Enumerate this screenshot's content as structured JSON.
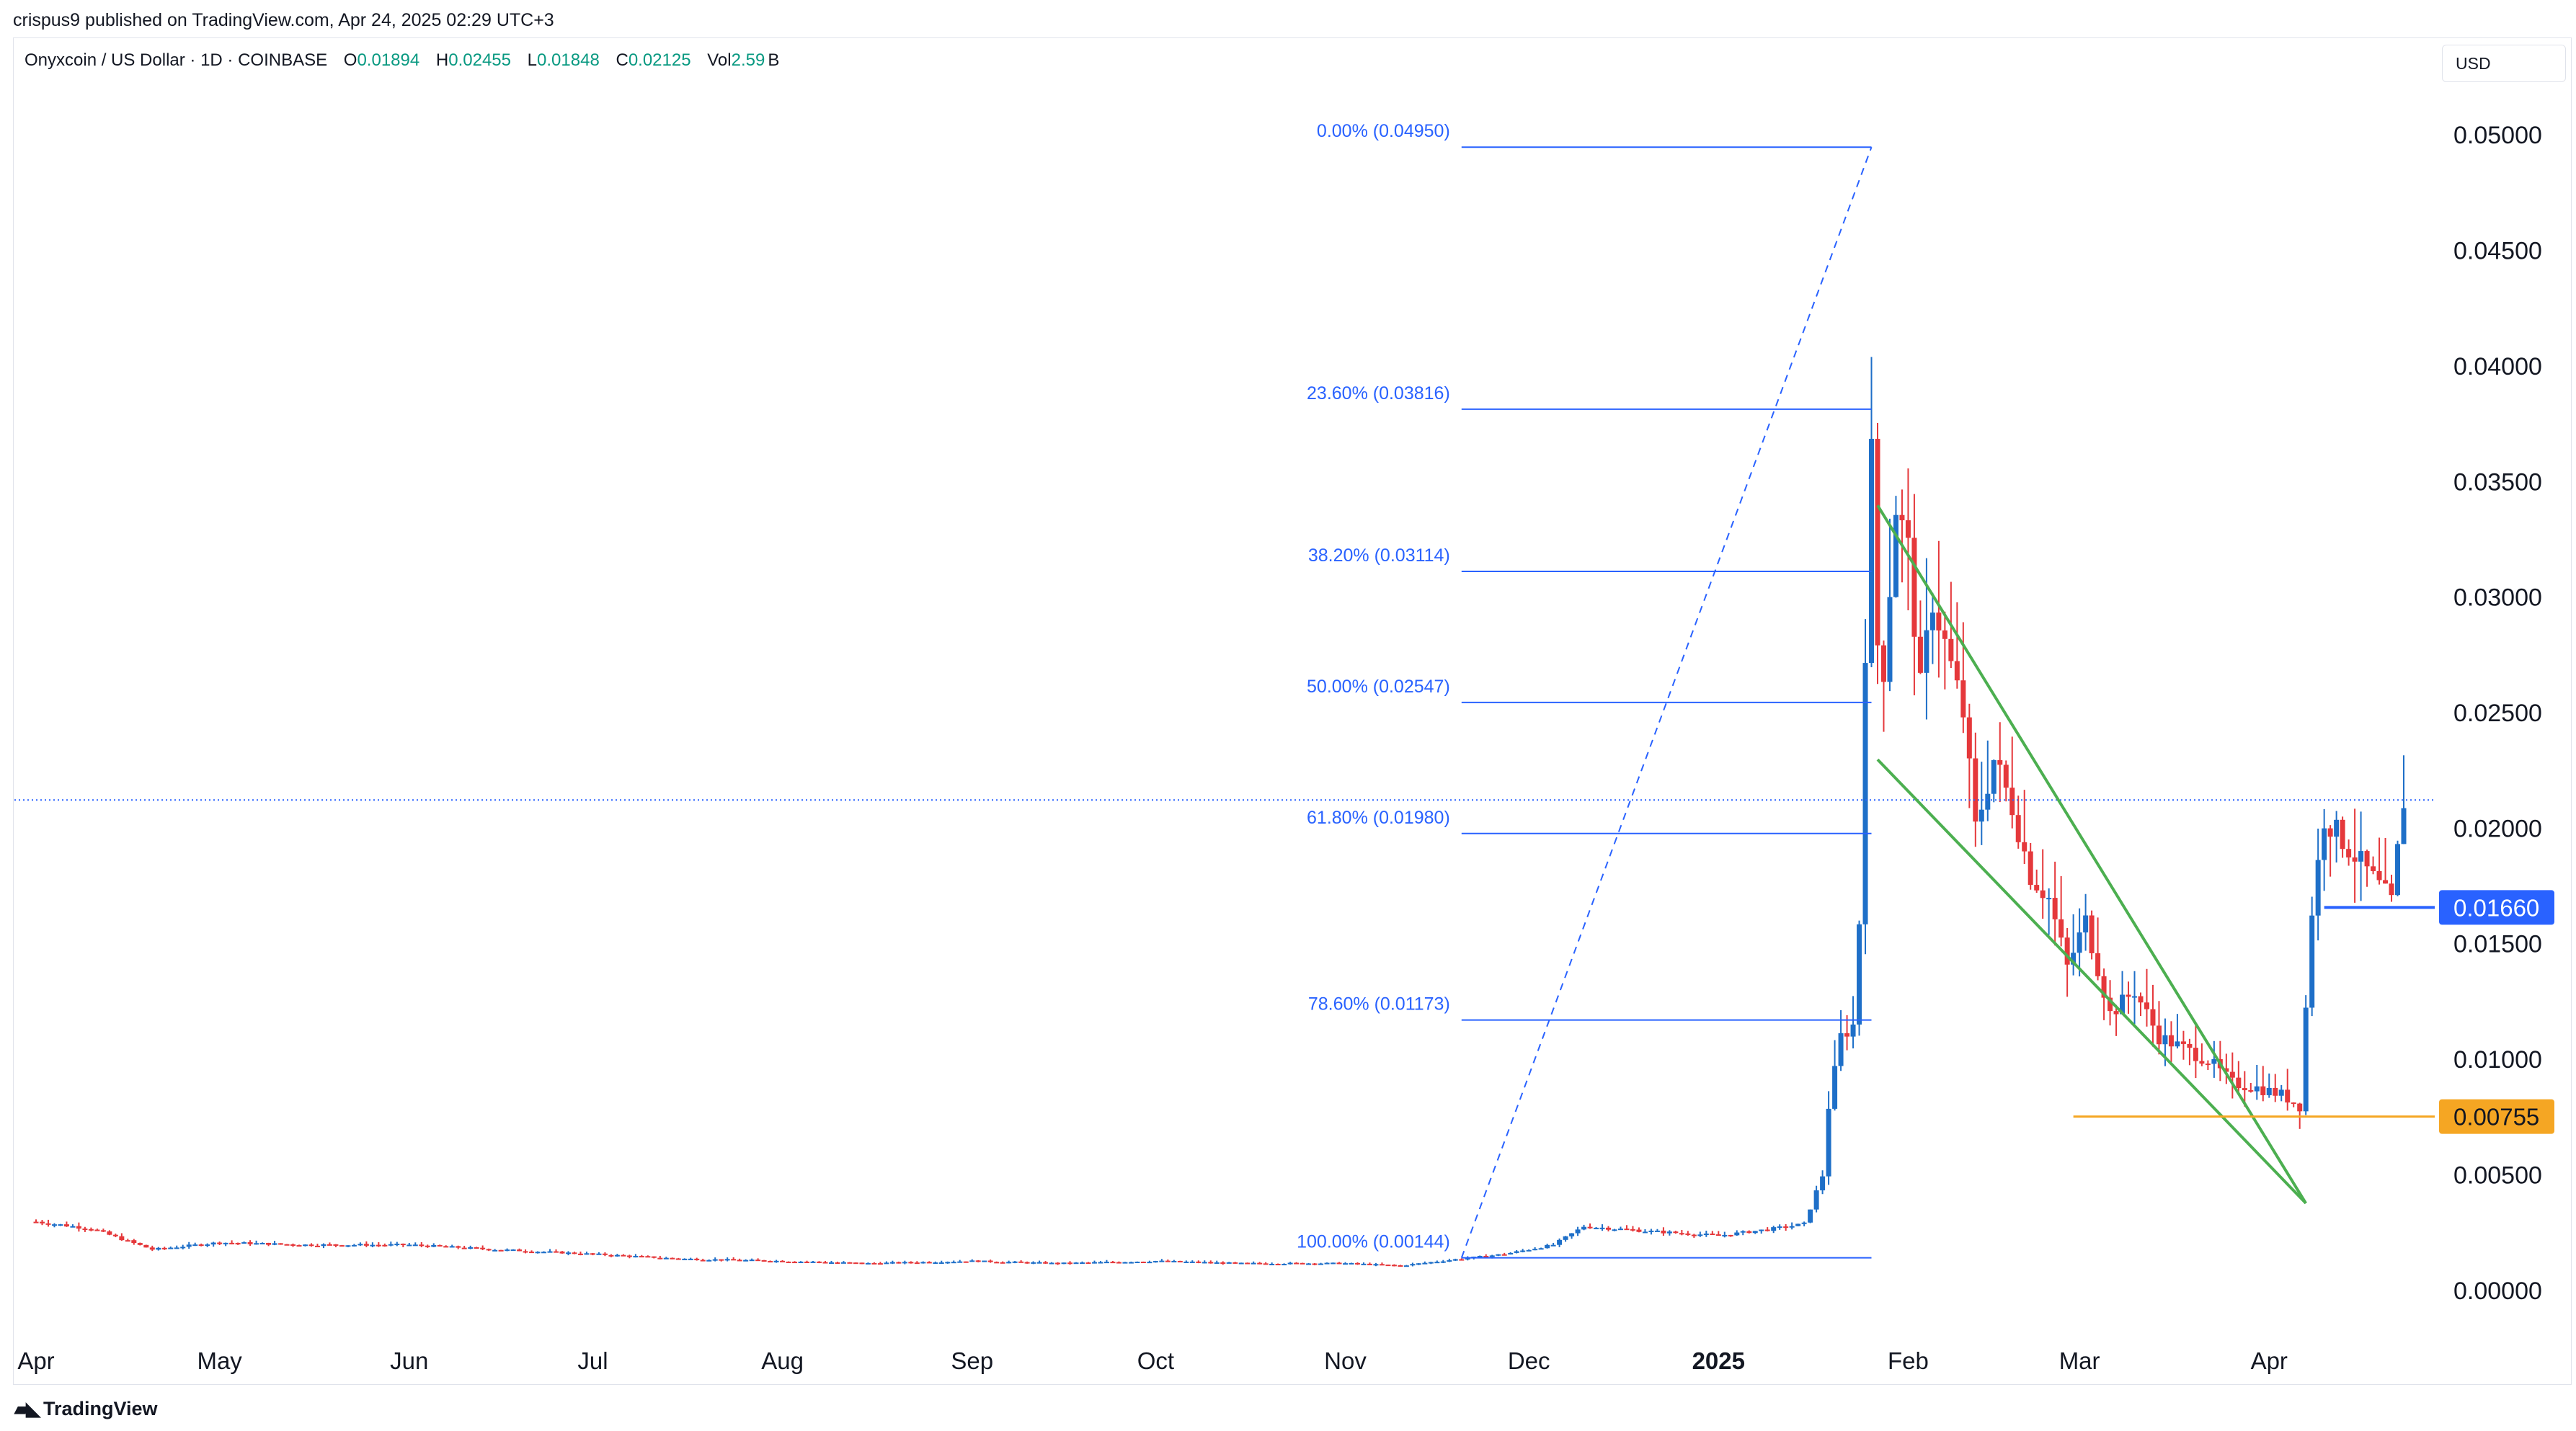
{
  "header": {
    "published": "crispus9 published on TradingView.com, Apr 24, 2025 02:29 UTC+3"
  },
  "legend": {
    "symbol": "Onyxcoin / US Dollar · 1D · COINBASE",
    "o_label": "O",
    "o_value": "0.01894",
    "h_label": "H",
    "h_value": "0.02455",
    "l_label": "L",
    "l_value": "0.01848",
    "c_label": "C",
    "c_value": "0.02125",
    "vol_label": "Vol",
    "vol_value": "2.59",
    "vol_unit": "B"
  },
  "currency": "USD",
  "brand": {
    "name": "TradingView",
    "icon": "tradingview-logo-icon"
  },
  "colors": {
    "up": "#1e6fc8",
    "down": "#e5383b",
    "fib": "#2962ff",
    "wedge": "#4caf50",
    "support": "#f5a623",
    "price_tag": "#2962ff"
  },
  "chart_data": {
    "type": "candlestick",
    "title": "Onyxcoin / US Dollar · 1D · COINBASE",
    "ylim": [
      -0.003,
      0.0525
    ],
    "yticks": [
      0.05,
      0.045,
      0.04,
      0.035,
      0.03,
      0.025,
      0.02,
      0.015,
      0.01,
      0.005,
      0.0
    ],
    "ytick_labels": [
      "0.05000",
      "0.04500",
      "0.04000",
      "0.03500",
      "0.03000",
      "0.02500",
      "0.02000",
      "0.01500",
      "0.01000",
      "0.00500",
      "0.00000"
    ],
    "x_start": "2024-04-01",
    "x_end": "2025-04-23",
    "xticks": [
      {
        "date": "2024-04-01",
        "label": "Apr"
      },
      {
        "date": "2024-05-01",
        "label": "May"
      },
      {
        "date": "2024-06-01",
        "label": "Jun"
      },
      {
        "date": "2024-07-01",
        "label": "Jul"
      },
      {
        "date": "2024-08-01",
        "label": "Aug"
      },
      {
        "date": "2024-09-01",
        "label": "Sep"
      },
      {
        "date": "2024-10-01",
        "label": "Oct"
      },
      {
        "date": "2024-11-01",
        "label": "Nov"
      },
      {
        "date": "2024-12-01",
        "label": "Dec"
      },
      {
        "date": "2025-01-01",
        "label": "2025"
      },
      {
        "date": "2025-02-01",
        "label": "Feb"
      },
      {
        "date": "2025-03-01",
        "label": "Mar"
      },
      {
        "date": "2025-04-01",
        "label": "Apr"
      }
    ],
    "close_path": [
      [
        "2024-04-01",
        0.003
      ],
      [
        "2024-04-10",
        0.0027
      ],
      [
        "2024-04-20",
        0.0018
      ],
      [
        "2024-05-01",
        0.0021
      ],
      [
        "2024-05-15",
        0.002
      ],
      [
        "2024-06-01",
        0.002
      ],
      [
        "2024-06-15",
        0.0018
      ],
      [
        "2024-07-01",
        0.0016
      ],
      [
        "2024-07-15",
        0.0014
      ],
      [
        "2024-08-01",
        0.0013
      ],
      [
        "2024-08-15",
        0.0012
      ],
      [
        "2024-09-01",
        0.0013
      ],
      [
        "2024-09-15",
        0.0012
      ],
      [
        "2024-10-01",
        0.0013
      ],
      [
        "2024-10-15",
        0.0012
      ],
      [
        "2024-11-01",
        0.0012
      ],
      [
        "2024-11-10",
        0.0011
      ],
      [
        "2024-11-20",
        0.0014
      ],
      [
        "2024-11-27",
        0.0016
      ],
      [
        "2024-12-05",
        0.002
      ],
      [
        "2024-12-10",
        0.0028
      ],
      [
        "2024-12-20",
        0.0026
      ],
      [
        "2025-01-01",
        0.0024
      ],
      [
        "2025-01-10",
        0.0027
      ],
      [
        "2025-01-15",
        0.0029
      ],
      [
        "2025-01-18",
        0.005
      ],
      [
        "2025-01-19",
        0.008
      ],
      [
        "2025-01-21",
        0.011
      ],
      [
        "2025-01-23",
        0.0115
      ],
      [
        "2025-01-24",
        0.016
      ],
      [
        "2025-01-25",
        0.028
      ],
      [
        "2025-01-26",
        0.036
      ],
      [
        "2025-01-27",
        0.028
      ],
      [
        "2025-01-28",
        0.027
      ],
      [
        "2025-01-30",
        0.034
      ],
      [
        "2025-02-01",
        0.032
      ],
      [
        "2025-02-03",
        0.026
      ],
      [
        "2025-02-05",
        0.03
      ],
      [
        "2025-02-08",
        0.027
      ],
      [
        "2025-02-10",
        0.025
      ],
      [
        "2025-02-12",
        0.02
      ],
      [
        "2025-02-15",
        0.023
      ],
      [
        "2025-02-18",
        0.021
      ],
      [
        "2025-02-21",
        0.018
      ],
      [
        "2025-02-24",
        0.017
      ],
      [
        "2025-02-27",
        0.014
      ],
      [
        "2025-03-02",
        0.016
      ],
      [
        "2025-03-06",
        0.012
      ],
      [
        "2025-03-10",
        0.013
      ],
      [
        "2025-03-14",
        0.011
      ],
      [
        "2025-03-18",
        0.0105
      ],
      [
        "2025-03-22",
        0.01
      ],
      [
        "2025-03-26",
        0.009
      ],
      [
        "2025-03-30",
        0.0088
      ],
      [
        "2025-04-03",
        0.0085
      ],
      [
        "2025-04-06",
        0.008
      ],
      [
        "2025-04-08",
        0.0165
      ],
      [
        "2025-04-10",
        0.0205
      ],
      [
        "2025-04-13",
        0.0195
      ],
      [
        "2025-04-16",
        0.0185
      ],
      [
        "2025-04-19",
        0.0175
      ],
      [
        "2025-04-21",
        0.0168
      ],
      [
        "2025-04-23",
        0.02125
      ]
    ],
    "last_price": 0.02125,
    "fibonacci": [
      {
        "label": "0.00% (0.04950)",
        "value": 0.0495
      },
      {
        "label": "23.60% (0.03816)",
        "value": 0.03816
      },
      {
        "label": "38.20% (0.03114)",
        "value": 0.03114
      },
      {
        "label": "50.00% (0.02547)",
        "value": 0.02547
      },
      {
        "label": "61.80% (0.01980)",
        "value": 0.0198
      },
      {
        "label": "78.60% (0.01173)",
        "value": 0.01173
      },
      {
        "label": "100.00% (0.00144)",
        "value": 0.00144
      }
    ],
    "fib_range": {
      "start": "2024-11-20",
      "end": "2025-01-26"
    },
    "fib_diagonal": [
      [
        "2024-11-20",
        0.00144
      ],
      [
        "2025-01-26",
        0.0495
      ]
    ],
    "wedge_lines": [
      [
        [
          "2025-01-27",
          0.023
        ],
        [
          "2025-04-07",
          0.0038
        ]
      ],
      [
        [
          "2025-01-27",
          0.034
        ],
        [
          "2025-04-07",
          0.0038
        ]
      ]
    ],
    "support_line": {
      "value": 0.00755,
      "start": "2025-02-28",
      "label": "0.00755"
    },
    "resistance_line": {
      "value": 0.0166,
      "start": "2025-04-10",
      "label": "0.01660"
    }
  }
}
